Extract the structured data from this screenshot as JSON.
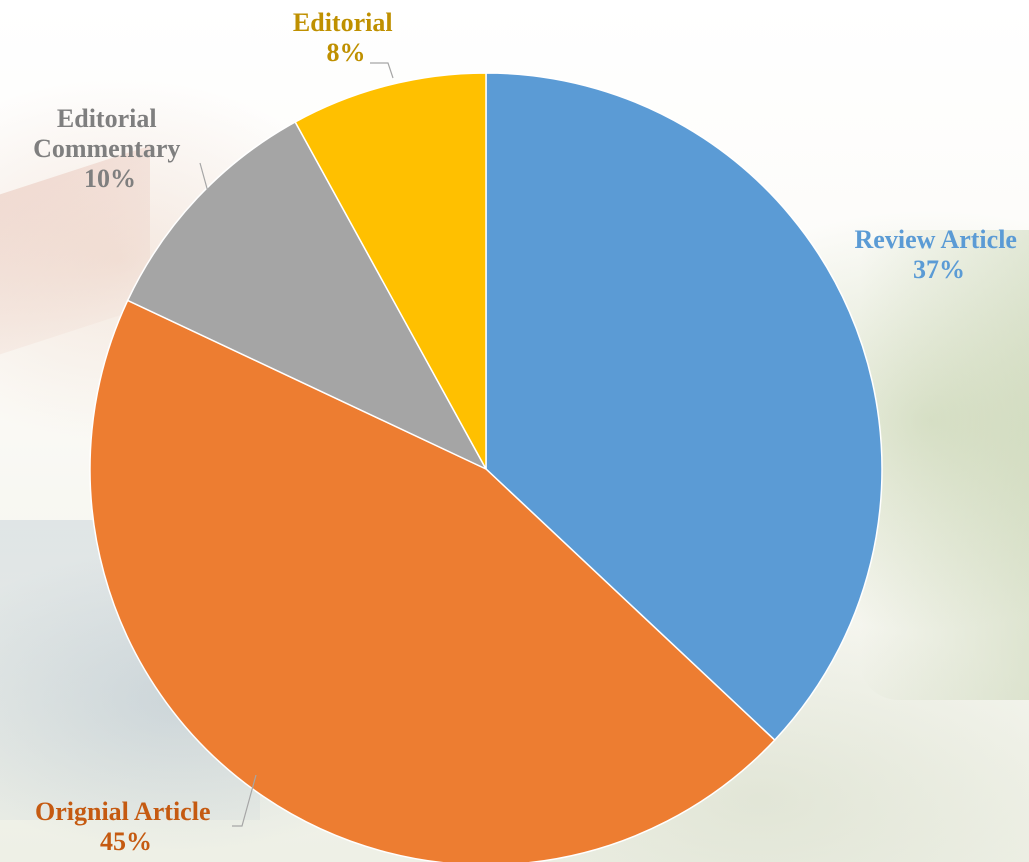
{
  "chart_data": {
    "type": "pie",
    "title": "",
    "start_angle_deg": 0,
    "direction": "clockwise",
    "slices": [
      {
        "label_lines": [
          "Review Article"
        ],
        "label": "Review Article",
        "value": 37,
        "pct_text": "37%",
        "color": "#5B9BD5"
      },
      {
        "label_lines": [
          "Orignial Article"
        ],
        "label": "Orignial Article",
        "value": 45,
        "pct_text": "45%",
        "color": "#ED7D31"
      },
      {
        "label_lines": [
          "Editorial",
          "Commentary"
        ],
        "label": "Editorial Commentary",
        "value": 10,
        "pct_text": "10%",
        "color": "#A5A5A5"
      },
      {
        "label_lines": [
          "Editorial"
        ],
        "label": "Editorial",
        "value": 8,
        "pct_text": "8%",
        "color": "#FFC000"
      }
    ],
    "label_colors": [
      "#5B9BD5",
      "#C55A11",
      "#7F7F7F",
      "#BF9000"
    ],
    "legend": "none",
    "leader_line_color": "#A6A6A6"
  }
}
